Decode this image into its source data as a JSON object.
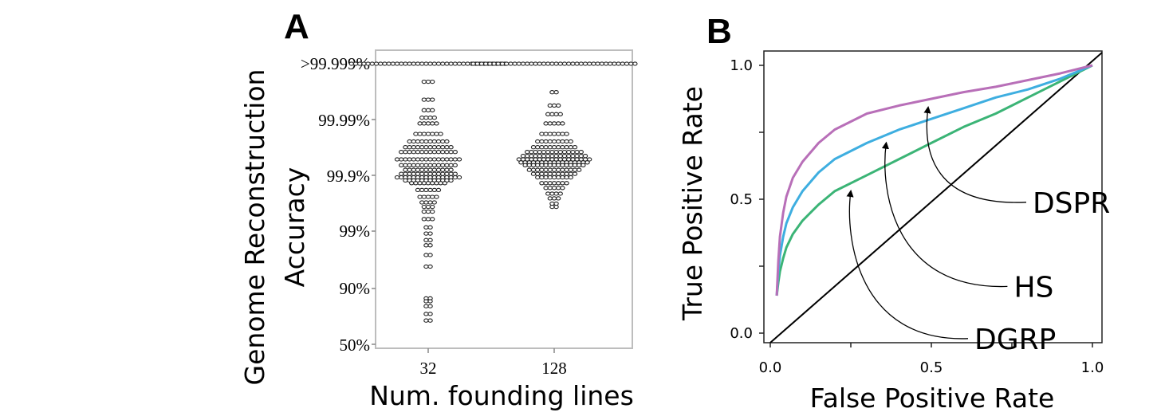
{
  "chart_data": [
    {
      "type": "scatter",
      "panel_label": "A",
      "ylabel_lines": [
        "Genome Reconstruction",
        "Accuracy"
      ],
      "xlabel": "Num. founding lines",
      "categories": [
        "32",
        "128"
      ],
      "y_ticks": [
        ">99.999%",
        "99.99%",
        "99.9%",
        "99%",
        "90%",
        "50%"
      ],
      "grid": false,
      "series": [
        {
          "category": "32",
          "bins": [
            {
              "y": 99.999,
              "count": 38
            },
            {
              "y": 99.998,
              "count": 3
            },
            {
              "y": 99.996,
              "count": 3
            },
            {
              "y": 99.994,
              "count": 3
            },
            {
              "y": 99.992,
              "count": 4
            },
            {
              "y": 99.99,
              "count": 5
            },
            {
              "y": 99.985,
              "count": 7
            },
            {
              "y": 99.98,
              "count": 10
            },
            {
              "y": 99.975,
              "count": 12
            },
            {
              "y": 99.97,
              "count": 14
            },
            {
              "y": 99.96,
              "count": 16
            },
            {
              "y": 99.95,
              "count": 14
            },
            {
              "y": 99.94,
              "count": 12
            },
            {
              "y": 99.93,
              "count": 14
            },
            {
              "y": 99.92,
              "count": 16
            },
            {
              "y": 99.91,
              "count": 12
            },
            {
              "y": 99.9,
              "count": 9
            },
            {
              "y": 99.87,
              "count": 6
            },
            {
              "y": 99.83,
              "count": 5
            },
            {
              "y": 99.79,
              "count": 4
            },
            {
              "y": 99.75,
              "count": 3
            },
            {
              "y": 99.7,
              "count": 3
            },
            {
              "y": 99.6,
              "count": 3
            },
            {
              "y": 99.45,
              "count": 2
            },
            {
              "y": 99.3,
              "count": 2
            },
            {
              "y": 99.1,
              "count": 2
            },
            {
              "y": 98.9,
              "count": 2
            },
            {
              "y": 98.4,
              "count": 2
            },
            {
              "y": 97.5,
              "count": 2
            },
            {
              "y": 91.5,
              "count": 2
            },
            {
              "y": 90.5,
              "count": 2
            },
            {
              "y": 88.5,
              "count": 2
            },
            {
              "y": 84.5,
              "count": 2
            },
            {
              "y": 80.0,
              "count": 2
            }
          ]
        },
        {
          "category": "128",
          "bins": [
            {
              "y": 99.999,
              "count": 40
            },
            {
              "y": 99.997,
              "count": 2
            },
            {
              "y": 99.995,
              "count": 3
            },
            {
              "y": 99.993,
              "count": 4
            },
            {
              "y": 99.99,
              "count": 5
            },
            {
              "y": 99.985,
              "count": 7
            },
            {
              "y": 99.98,
              "count": 9
            },
            {
              "y": 99.975,
              "count": 11
            },
            {
              "y": 99.97,
              "count": 14
            },
            {
              "y": 99.965,
              "count": 16
            },
            {
              "y": 99.96,
              "count": 18
            },
            {
              "y": 99.955,
              "count": 17
            },
            {
              "y": 99.95,
              "count": 15
            },
            {
              "y": 99.94,
              "count": 13
            },
            {
              "y": 99.93,
              "count": 11
            },
            {
              "y": 99.92,
              "count": 9
            },
            {
              "y": 99.9,
              "count": 7
            },
            {
              "y": 99.88,
              "count": 5
            },
            {
              "y": 99.85,
              "count": 4
            },
            {
              "y": 99.82,
              "count": 3
            },
            {
              "y": 99.78,
              "count": 2
            },
            {
              "y": 99.75,
              "count": 2
            }
          ]
        }
      ]
    },
    {
      "type": "line",
      "panel_label": "B",
      "xlabel": "False Positive Rate",
      "ylabel": "True Positive Rate",
      "xlim": [
        0,
        1
      ],
      "ylim": [
        0,
        1
      ],
      "x_ticks": [
        "0.0",
        "0.5",
        "1.0"
      ],
      "y_ticks": [
        "0.0",
        "0.5",
        "1.0"
      ],
      "grid": false,
      "diagonal": true,
      "series": [
        {
          "name": "DSPR",
          "color": "#b86fb8",
          "x": [
            0.02,
            0.025,
            0.03,
            0.04,
            0.05,
            0.07,
            0.1,
            0.15,
            0.2,
            0.3,
            0.4,
            0.5,
            0.6,
            0.7,
            0.8,
            0.9,
            1.0
          ],
          "y": [
            0.14,
            0.27,
            0.36,
            0.45,
            0.51,
            0.58,
            0.64,
            0.71,
            0.76,
            0.82,
            0.85,
            0.875,
            0.9,
            0.92,
            0.945,
            0.97,
            1.0
          ]
        },
        {
          "name": "HS",
          "color": "#3eaee0",
          "x": [
            0.02,
            0.025,
            0.03,
            0.04,
            0.05,
            0.07,
            0.1,
            0.15,
            0.2,
            0.3,
            0.4,
            0.5,
            0.6,
            0.7,
            0.8,
            0.9,
            1.0
          ],
          "y": [
            0.14,
            0.23,
            0.29,
            0.36,
            0.41,
            0.47,
            0.53,
            0.6,
            0.65,
            0.71,
            0.76,
            0.8,
            0.84,
            0.88,
            0.91,
            0.95,
            1.0
          ]
        },
        {
          "name": "DGRP",
          "color": "#3bb476",
          "x": [
            0.02,
            0.025,
            0.03,
            0.04,
            0.05,
            0.07,
            0.1,
            0.15,
            0.2,
            0.3,
            0.4,
            0.5,
            0.6,
            0.7,
            0.8,
            0.9,
            1.0
          ],
          "y": [
            0.14,
            0.19,
            0.23,
            0.28,
            0.32,
            0.37,
            0.42,
            0.48,
            0.53,
            0.59,
            0.65,
            0.71,
            0.77,
            0.82,
            0.88,
            0.94,
            1.0
          ]
        }
      ],
      "annotations": [
        {
          "label": "DSPR",
          "series": "DSPR",
          "x": 0.49
        },
        {
          "label": "HS",
          "series": "HS",
          "x": 0.36
        },
        {
          "label": "DGRP",
          "series": "DGRP",
          "x": 0.25
        }
      ]
    }
  ]
}
